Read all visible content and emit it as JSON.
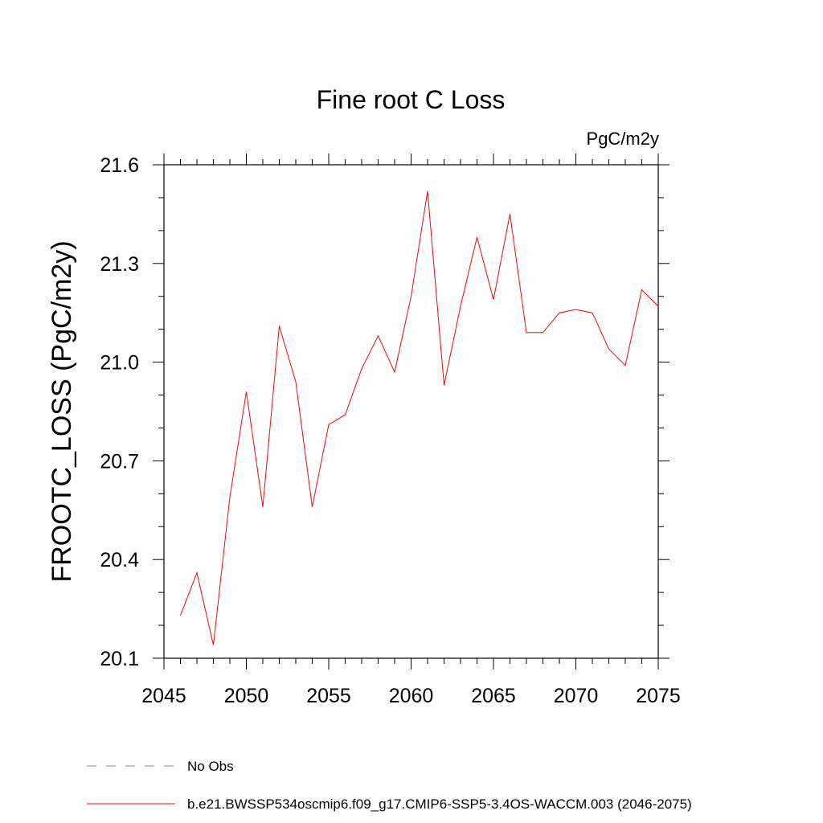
{
  "chart_data": {
    "type": "line",
    "title": "Fine root C Loss",
    "units": "PgC/m2y",
    "xlabel": "",
    "ylabel": "FROOTC_LOSS  (PgC/m2y)",
    "xlim": [
      2045,
      2075
    ],
    "ylim": [
      20.1,
      21.6
    ],
    "xticks": [
      2045,
      2050,
      2055,
      2060,
      2065,
      2070,
      2075
    ],
    "xtick_labels": [
      "2045",
      "2050",
      "2055",
      "2060",
      "2065",
      "2070",
      "2075"
    ],
    "yticks": [
      20.1,
      20.4,
      20.7,
      21.0,
      21.3,
      21.6
    ],
    "ytick_labels": [
      "20.1",
      "20.4",
      "20.7",
      "21.0",
      "21.3",
      "21.6"
    ],
    "grid": false,
    "legend_position": "bottom-left",
    "series": [
      {
        "name": "b.e21.BWSSP534oscmip6.f09_g17.CMIP6-SSP5-3.4OS-WACCM.003 (2046-2075)",
        "color": "#ff0000",
        "dash": "solid",
        "x": [
          2046,
          2047,
          2048,
          2049,
          2050,
          2051,
          2052,
          2053,
          2054,
          2055,
          2056,
          2057,
          2058,
          2059,
          2060,
          2061,
          2062,
          2063,
          2064,
          2065,
          2066,
          2067,
          2068,
          2069,
          2070,
          2071,
          2072,
          2073,
          2074,
          2075
        ],
        "values": [
          20.23,
          20.36,
          20.14,
          20.59,
          20.91,
          20.56,
          21.11,
          20.94,
          20.56,
          20.81,
          20.84,
          20.98,
          21.08,
          20.97,
          21.2,
          21.52,
          20.93,
          21.17,
          21.38,
          21.19,
          21.45,
          21.09,
          21.09,
          21.15,
          21.16,
          21.15,
          21.04,
          20.99,
          21.22,
          21.17
        ]
      },
      {
        "name": "No Obs",
        "color": "#8a7fc0",
        "dash": "dashed",
        "x": [],
        "values": []
      }
    ]
  }
}
